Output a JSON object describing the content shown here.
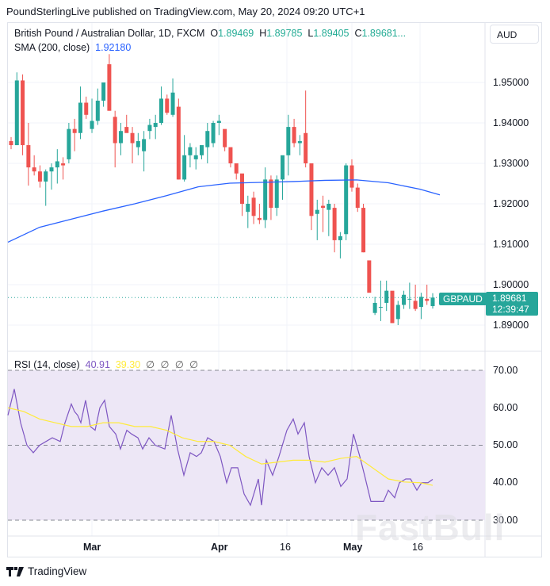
{
  "header": {
    "published": "PoundSterlingLive published on TradingView.com, May 20, 2024 09:20 UTC+1"
  },
  "legend": {
    "symbol": "British Pound / Australian Dollar, 1D, FXCM",
    "o_label": "O",
    "o": "1.89469",
    "h_label": "H",
    "h": "1.89785",
    "l_label": "L",
    "l": "1.89405",
    "c_label": "C",
    "c": "1.89681..."
  },
  "sma": {
    "label": "SMA (200, close)",
    "value": "1.92180"
  },
  "currency_button": "AUD",
  "price_axis": [
    "1.95000",
    "1.94000",
    "1.93000",
    "1.92000",
    "1.91000",
    "1.90000",
    "1.89000"
  ],
  "last": {
    "ticker": "GBPAUD",
    "price": "1.89681",
    "countdown": "12:39:47"
  },
  "rsi": {
    "label": "RSI (14, close)",
    "value": "40.91",
    "ma_value": "39.30",
    "na": "∅ ∅ ∅ ∅",
    "axis": [
      "70.00",
      "60.00",
      "50.00",
      "40.00",
      "30.00"
    ]
  },
  "time_axis": [
    {
      "label": "Mar",
      "bold": true
    },
    {
      "label": "Apr",
      "bold": true
    },
    {
      "label": "16",
      "bold": false
    },
    {
      "label": "May",
      "bold": true
    },
    {
      "label": "16",
      "bold": false
    }
  ],
  "footer": {
    "brand": "TradingView"
  },
  "watermark": "FastBull",
  "colors": {
    "up": "#26a69a",
    "down": "#ef5350",
    "sma": "#2962ff",
    "rsi": "#7e57c2",
    "rsi_ma": "#ffeb3b",
    "rsi_band": "#ede7f6"
  },
  "chart_data": [
    {
      "type": "candlestick",
      "title": "British Pound / Australian Dollar, 1D, FXCM",
      "x_labels": [
        "Mar",
        "Apr",
        "16",
        "May",
        "16"
      ],
      "ylim": [
        1.887,
        1.958
      ],
      "candles": [
        [
          1.9355,
          1.9365,
          1.9335,
          1.9345
        ],
        [
          1.9345,
          1.9525,
          1.9345,
          1.9505
        ],
        [
          1.9505,
          1.952,
          1.932,
          1.9345
        ],
        [
          1.9345,
          1.94,
          1.9245,
          1.929
        ],
        [
          1.929,
          1.932,
          1.927,
          1.928
        ],
        [
          1.928,
          1.9295,
          1.924,
          1.9255
        ],
        [
          1.9255,
          1.9285,
          1.9195,
          1.928
        ],
        [
          1.928,
          1.93,
          1.9235,
          1.929
        ],
        [
          1.929,
          1.9335,
          1.925,
          1.9305
        ],
        [
          1.93,
          1.9315,
          1.926,
          1.9295
        ],
        [
          1.931,
          1.94,
          1.93,
          1.9385
        ],
        [
          1.9385,
          1.941,
          1.933,
          1.9375
        ],
        [
          1.9375,
          1.949,
          1.936,
          1.945
        ],
        [
          1.945,
          1.9465,
          1.941,
          1.942
        ],
        [
          1.9385,
          1.946,
          1.9375,
          1.9405
        ],
        [
          1.9405,
          1.9485,
          1.9395,
          1.9455
        ],
        [
          1.9455,
          1.9495,
          1.944,
          1.95
        ],
        [
          1.9545,
          1.957,
          1.943,
          1.943
        ],
        [
          1.9415,
          1.943,
          1.929,
          1.935
        ],
        [
          1.935,
          1.94,
          1.932,
          1.938
        ],
        [
          1.939,
          1.942,
          1.938,
          1.9375
        ],
        [
          1.9375,
          1.939,
          1.93,
          1.935
        ],
        [
          1.934,
          1.9375,
          1.932,
          1.9355
        ],
        [
          1.933,
          1.938,
          1.928,
          1.936
        ],
        [
          1.938,
          1.941,
          1.936,
          1.9395
        ],
        [
          1.939,
          1.942,
          1.936,
          1.94
        ],
        [
          1.94,
          1.949,
          1.9395,
          1.946
        ],
        [
          1.946,
          1.947,
          1.942,
          1.9425
        ],
        [
          1.942,
          1.951,
          1.9415,
          1.9475
        ],
        [
          1.944,
          1.946,
          1.926,
          1.926
        ],
        [
          1.926,
          1.937,
          1.9255,
          1.932
        ],
        [
          1.932,
          1.935,
          1.929,
          1.934
        ],
        [
          1.931,
          1.934,
          1.9285,
          1.932
        ],
        [
          1.932,
          1.934,
          1.931,
          1.9345
        ],
        [
          1.934,
          1.94,
          1.93,
          1.938
        ],
        [
          1.935,
          1.9405,
          1.934,
          1.94
        ],
        [
          1.94,
          1.942,
          1.937,
          1.9405
        ],
        [
          1.9385,
          1.938,
          1.933,
          1.934
        ],
        [
          1.934,
          1.933,
          1.929,
          1.93
        ],
        [
          1.93,
          1.929,
          1.926,
          1.9275
        ],
        [
          1.9275,
          1.925,
          1.917,
          1.92
        ],
        [
          1.918,
          1.922,
          1.914,
          1.92
        ],
        [
          1.9215,
          1.923,
          1.915,
          1.917
        ],
        [
          1.9165,
          1.92,
          1.915,
          1.916
        ],
        [
          1.916,
          1.929,
          1.914,
          1.926
        ],
        [
          1.926,
          1.927,
          1.916,
          1.919
        ],
        [
          1.919,
          1.927,
          1.917,
          1.926
        ],
        [
          1.926,
          1.931,
          1.921,
          1.932
        ],
        [
          1.932,
          1.942,
          1.927,
          1.939
        ],
        [
          1.939,
          1.941,
          1.934,
          1.935
        ],
        [
          1.935,
          1.937,
          1.932,
          1.9355
        ],
        [
          1.9375,
          1.948,
          1.929,
          1.93
        ],
        [
          1.93,
          1.9255,
          1.9135,
          1.917
        ],
        [
          1.9175,
          1.921,
          1.911,
          1.9185
        ],
        [
          1.9195,
          1.922,
          1.913,
          1.919
        ],
        [
          1.9185,
          1.921,
          1.912,
          1.92
        ],
        [
          1.919,
          1.92,
          1.908,
          1.911
        ],
        [
          1.911,
          1.913,
          1.9065,
          1.912
        ],
        [
          1.9125,
          1.93,
          1.911,
          1.9295
        ],
        [
          1.9295,
          1.931,
          1.923,
          1.924
        ],
        [
          1.924,
          1.925,
          1.918,
          1.919
        ],
        [
          1.919,
          1.92,
          1.908,
          1.908
        ],
        [
          1.906,
          1.905,
          1.899,
          1.898
        ],
        [
          1.893,
          1.897,
          1.8925,
          1.8955
        ],
        [
          1.8945,
          1.901,
          1.891,
          1.8945
        ],
        [
          1.8955,
          1.901,
          1.8935,
          1.8985
        ],
        [
          1.8985,
          1.898,
          1.8905,
          1.8905
        ],
        [
          1.8915,
          1.896,
          1.89,
          1.895
        ],
        [
          1.895,
          1.8985,
          1.894,
          1.8975
        ],
        [
          1.8965,
          1.9005,
          1.894,
          1.8965
        ],
        [
          1.896,
          1.9,
          1.8935,
          1.894
        ],
        [
          1.8945,
          1.898,
          1.8915,
          1.897
        ],
        [
          1.8965,
          1.9,
          1.895,
          1.896
        ],
        [
          1.8947,
          1.8979,
          1.8941,
          1.8968
        ]
      ],
      "sma": {
        "name": "SMA (200, close)",
        "last": 1.9218,
        "points": [
          [
            0,
            1.9105
          ],
          [
            40,
            1.9142
          ],
          [
            80,
            1.9162
          ],
          [
            120,
            1.9182
          ],
          [
            160,
            1.92
          ],
          [
            200,
            1.922
          ],
          [
            240,
            1.9242
          ],
          [
            280,
            1.9251
          ],
          [
            320,
            1.9253
          ],
          [
            360,
            1.9255
          ],
          [
            400,
            1.9258
          ],
          [
            440,
            1.9259
          ],
          [
            480,
            1.9252
          ],
          [
            520,
            1.9236
          ],
          [
            545,
            1.9222
          ]
        ]
      }
    },
    {
      "type": "line",
      "title": "RSI (14, close)",
      "ylim": [
        28,
        72
      ],
      "bands": [
        30,
        50,
        70
      ],
      "series": [
        {
          "name": "RSI",
          "color": "#7e57c2",
          "values": [
            [
              0,
              58
            ],
            [
              8,
              65
            ],
            [
              16,
              56
            ],
            [
              24,
              50
            ],
            [
              32,
              48
            ],
            [
              40,
              50
            ],
            [
              56,
              52
            ],
            [
              66,
              51
            ],
            [
              72,
              56
            ],
            [
              80,
              61
            ],
            [
              84,
              59
            ],
            [
              88,
              58
            ],
            [
              92,
              56
            ],
            [
              98,
              62
            ],
            [
              104,
              55
            ],
            [
              110,
              54
            ],
            [
              116,
              60
            ],
            [
              122,
              62
            ],
            [
              128,
              55
            ],
            [
              136,
              53
            ],
            [
              142,
              49
            ],
            [
              150,
              54
            ],
            [
              156,
              53
            ],
            [
              164,
              52
            ],
            [
              170,
              49
            ],
            [
              178,
              52
            ],
            [
              186,
              50
            ],
            [
              198,
              49
            ],
            [
              206,
              58
            ],
            [
              214,
              49
            ],
            [
              222,
              42
            ],
            [
              230,
              48
            ],
            [
              238,
              47
            ],
            [
              244,
              48
            ],
            [
              252,
              52
            ],
            [
              260,
              51
            ],
            [
              268,
              47
            ],
            [
              276,
              40
            ],
            [
              282,
              44
            ],
            [
              290,
              44
            ],
            [
              298,
              37
            ],
            [
              306,
              34
            ],
            [
              316,
              41
            ],
            [
              320,
              34
            ],
            [
              326,
              46
            ],
            [
              334,
              42
            ],
            [
              342,
              47
            ],
            [
              352,
              54
            ],
            [
              360,
              57
            ],
            [
              366,
              53
            ],
            [
              374,
              56
            ],
            [
              380,
              47
            ],
            [
              388,
              40
            ],
            [
              396,
              44
            ],
            [
              404,
              42
            ],
            [
              412,
              44
            ],
            [
              420,
              39
            ],
            [
              428,
              41
            ],
            [
              436,
              53
            ],
            [
              444,
              47
            ],
            [
              450,
              42
            ],
            [
              458,
              35
            ],
            [
              466,
              35
            ],
            [
              474,
              35
            ],
            [
              480,
              38
            ],
            [
              488,
              36
            ],
            [
              494,
              40
            ],
            [
              502,
              41
            ],
            [
              508,
              41
            ],
            [
              516,
              38
            ],
            [
              522,
              40
            ],
            [
              530,
              40
            ],
            [
              536,
              40.91
            ]
          ]
        },
        {
          "name": "RSI-based MA",
          "color": "#ffeb3b",
          "values": [
            [
              0,
              60
            ],
            [
              20,
              59
            ],
            [
              40,
              57
            ],
            [
              60,
              56
            ],
            [
              80,
              55
            ],
            [
              100,
              55
            ],
            [
              120,
              56
            ],
            [
              140,
              56
            ],
            [
              160,
              55
            ],
            [
              180,
              55
            ],
            [
              200,
              54
            ],
            [
              220,
              52
            ],
            [
              240,
              51
            ],
            [
              260,
              51
            ],
            [
              280,
              50
            ],
            [
              300,
              47
            ],
            [
              320,
              45
            ],
            [
              340,
              45.5
            ],
            [
              360,
              46
            ],
            [
              380,
              46
            ],
            [
              400,
              45.5
            ],
            [
              420,
              46.5
            ],
            [
              440,
              47
            ],
            [
              460,
              44
            ],
            [
              480,
              41
            ],
            [
              500,
              40.2
            ],
            [
              520,
              40
            ],
            [
              536,
              39.3
            ]
          ]
        }
      ]
    }
  ]
}
